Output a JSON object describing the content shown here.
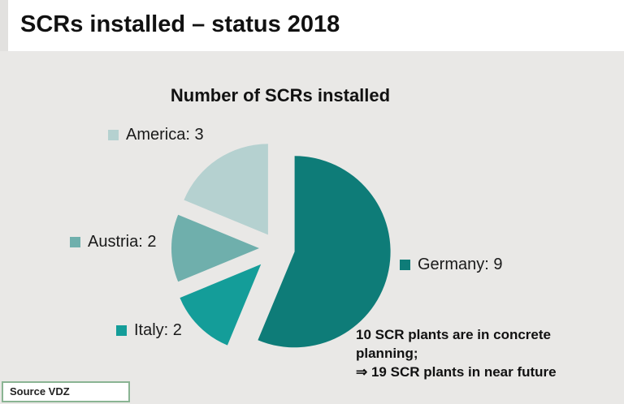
{
  "header": {
    "title": "SCRs installed – status 2018"
  },
  "chart_data": {
    "type": "pie",
    "title": "Number of SCRs installed",
    "total": 16,
    "start_angle_deg": 0,
    "direction": "clockwise",
    "exploded": true,
    "slices": [
      {
        "label": "Germany",
        "value": 9,
        "color": "#0e7c78",
        "legend_text": "Germany: 9"
      },
      {
        "label": "Italy",
        "value": 2,
        "color": "#149d99",
        "legend_text": "Italy: 2"
      },
      {
        "label": "Austria",
        "value": 2,
        "color": "#6fafac",
        "legend_text": "Austria: 2"
      },
      {
        "label": "America",
        "value": 3,
        "color": "#b5d1d0",
        "legend_text": "America: 3"
      }
    ],
    "legend_position": "around-slices"
  },
  "annotation": {
    "lines": [
      "10 SCR plants are in concrete",
      "planning;",
      "⇒ 19 SCR plants in near future"
    ]
  },
  "footer": {
    "source_label": "Source VDZ"
  },
  "colors": {
    "background": "#e9e8e6",
    "header_bg": "#ffffff",
    "source_border": "#8ab493",
    "text": "#1a1a1a"
  }
}
